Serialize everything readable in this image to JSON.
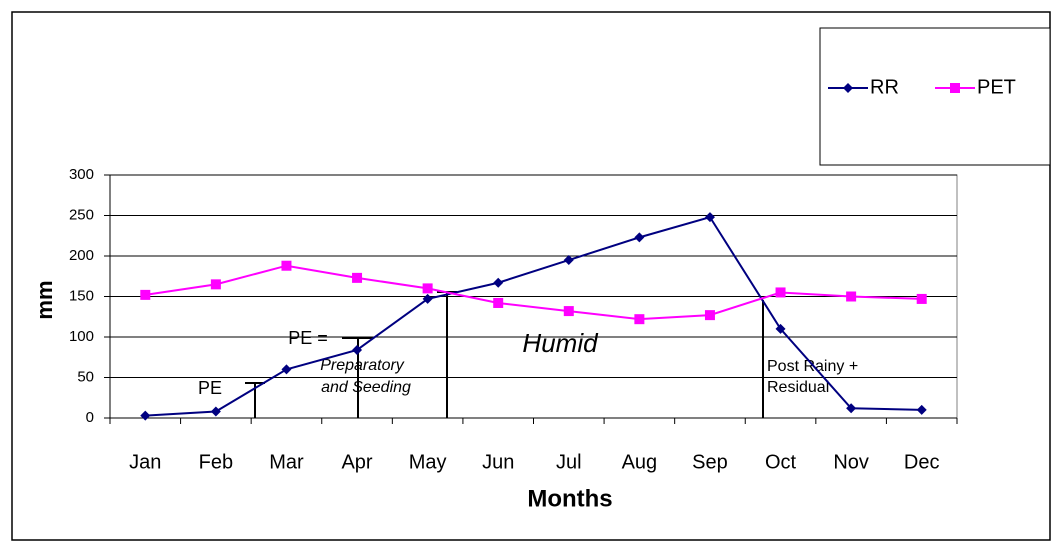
{
  "chart_data": {
    "type": "line",
    "x_label": "Months",
    "y_label": "mm",
    "categories": [
      "Jan",
      "Feb",
      "Mar",
      "Apr",
      "May",
      "Jun",
      "Jul",
      "Aug",
      "Sep",
      "Oct",
      "Nov",
      "Dec"
    ],
    "series": [
      {
        "name": "RR",
        "color": "#000080",
        "marker": "diamond",
        "values": [
          3,
          8,
          60,
          84,
          147,
          167,
          195,
          223,
          248,
          110,
          12,
          10
        ]
      },
      {
        "name": "PET",
        "color": "#ff00ff",
        "marker": "square",
        "values": [
          152,
          165,
          188,
          173,
          160,
          142,
          132,
          122,
          127,
          155,
          150,
          147
        ]
      }
    ],
    "ylim": [
      0,
      300
    ],
    "yticks": [
      0,
      50,
      100,
      150,
      200,
      250,
      300
    ],
    "grid": true,
    "legend": "top-right",
    "annotations": [
      "PE",
      "PE =",
      "Preparatory",
      "and Seeding",
      "Humid",
      "Post Rainy +",
      "Residual"
    ]
  }
}
